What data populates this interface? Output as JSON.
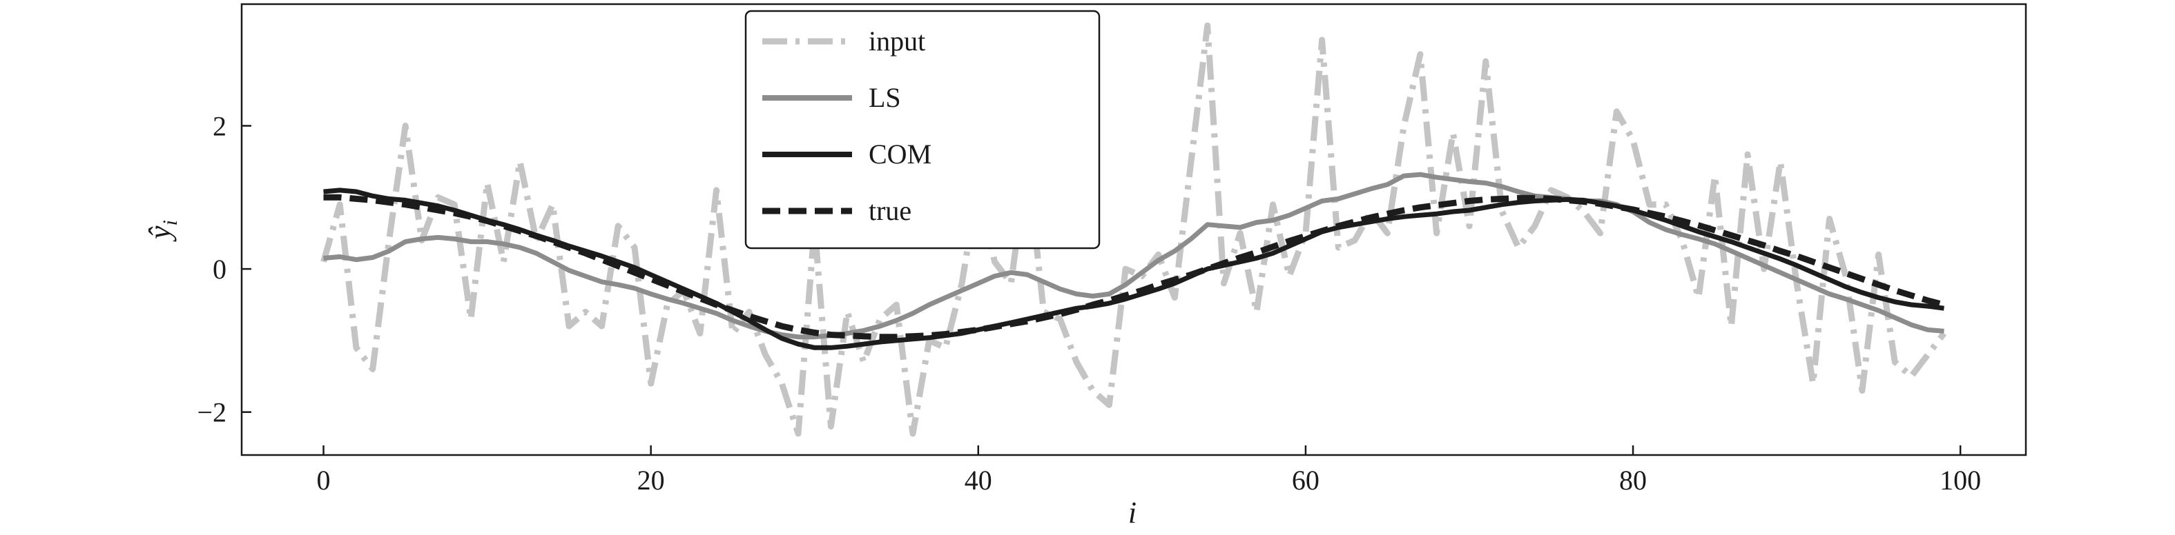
{
  "chart_data": {
    "type": "line",
    "xlabel": "i",
    "ylabel": "ŷ",
    "ylabel_sub": "i",
    "xlim": [
      -5,
      104
    ],
    "ylim": [
      -2.6,
      3.7
    ],
    "x_ticks": [
      0,
      20,
      40,
      60,
      80,
      100
    ],
    "x_tick_labels": [
      "0",
      "20",
      "40",
      "60",
      "80",
      "100"
    ],
    "y_ticks": [
      -2,
      0,
      2
    ],
    "y_tick_labels": [
      "−2",
      "0",
      "2"
    ],
    "grid": false,
    "legend_position": "top-center",
    "series": [
      {
        "name": "input",
        "color": "#c4c4c4",
        "style": "dashdot",
        "x": [
          0,
          1,
          2,
          3,
          4,
          5,
          6,
          7,
          8,
          9,
          10,
          11,
          12,
          13,
          14,
          15,
          16,
          17,
          18,
          19,
          20,
          21,
          22,
          23,
          24,
          25,
          26,
          27,
          28,
          29,
          30,
          31,
          32,
          33,
          34,
          35,
          36,
          37,
          38,
          39,
          40,
          41,
          42,
          43,
          44,
          45,
          46,
          47,
          48,
          49,
          50,
          51,
          52,
          53,
          54,
          55,
          56,
          57,
          58,
          59,
          60,
          61,
          62,
          63,
          64,
          65,
          66,
          67,
          68,
          69,
          70,
          71,
          72,
          73,
          74,
          75,
          76,
          77,
          78,
          79,
          80,
          81,
          82,
          83,
          84,
          85,
          86,
          87,
          88,
          89,
          90,
          91,
          92,
          93,
          94,
          95,
          96,
          97,
          98,
          99
        ],
        "y": [
          0.1,
          0.9,
          -1.1,
          -1.4,
          0.4,
          2.0,
          0.4,
          1.0,
          0.9,
          -0.7,
          1.2,
          0.1,
          1.5,
          0.4,
          0.9,
          -0.8,
          -0.6,
          -0.8,
          0.6,
          0.3,
          -1.6,
          -0.5,
          -0.3,
          -0.9,
          1.1,
          -0.9,
          -0.6,
          -1.2,
          -1.6,
          -2.3,
          0.6,
          -2.2,
          -0.6,
          -1.3,
          -0.7,
          -0.5,
          -2.3,
          -1.0,
          -1.1,
          -0.2,
          1.2,
          0.1,
          -0.2,
          1.5,
          -0.6,
          -0.7,
          -1.3,
          -1.7,
          -1.9,
          0.0,
          -0.1,
          0.2,
          -0.4,
          1.5,
          3.4,
          -0.2,
          0.5,
          -0.6,
          0.9,
          -0.1,
          0.5,
          3.2,
          0.3,
          0.4,
          0.8,
          0.5,
          2.0,
          3.0,
          0.5,
          1.9,
          0.6,
          2.9,
          0.8,
          0.3,
          0.6,
          1.1,
          1.0,
          0.8,
          0.5,
          2.2,
          1.8,
          0.9,
          0.9,
          0.4,
          -0.4,
          1.3,
          -0.8,
          1.6,
          0.0,
          1.5,
          -0.2,
          -1.6,
          0.7,
          -0.1,
          -1.7,
          0.2,
          -1.3,
          -1.5,
          -1.2,
          -0.9
        ]
      },
      {
        "name": "LS",
        "color": "#8c8c8c",
        "style": "solid",
        "x": [
          0,
          1,
          2,
          3,
          4,
          5,
          6,
          7,
          8,
          9,
          10,
          11,
          12,
          13,
          14,
          15,
          16,
          17,
          18,
          19,
          20,
          21,
          22,
          23,
          24,
          25,
          26,
          27,
          28,
          29,
          30,
          31,
          32,
          33,
          34,
          35,
          36,
          37,
          38,
          39,
          40,
          41,
          42,
          43,
          44,
          45,
          46,
          47,
          48,
          49,
          50,
          51,
          52,
          53,
          54,
          55,
          56,
          57,
          58,
          59,
          60,
          61,
          62,
          63,
          64,
          65,
          66,
          67,
          68,
          69,
          70,
          71,
          72,
          73,
          74,
          75,
          76,
          77,
          78,
          79,
          80,
          81,
          82,
          83,
          84,
          85,
          86,
          87,
          88,
          89,
          90,
          91,
          92,
          93,
          94,
          95,
          96,
          97,
          98,
          99
        ],
        "y": [
          0.15,
          0.17,
          0.13,
          0.16,
          0.25,
          0.38,
          0.42,
          0.44,
          0.42,
          0.38,
          0.38,
          0.35,
          0.3,
          0.22,
          0.1,
          -0.02,
          -0.1,
          -0.18,
          -0.22,
          -0.27,
          -0.35,
          -0.42,
          -0.48,
          -0.55,
          -0.62,
          -0.72,
          -0.8,
          -0.87,
          -0.92,
          -0.95,
          -0.95,
          -0.93,
          -0.9,
          -0.86,
          -0.8,
          -0.72,
          -0.62,
          -0.5,
          -0.4,
          -0.3,
          -0.2,
          -0.1,
          -0.05,
          -0.08,
          -0.18,
          -0.28,
          -0.35,
          -0.38,
          -0.35,
          -0.22,
          -0.05,
          0.12,
          0.25,
          0.42,
          0.62,
          0.6,
          0.58,
          0.65,
          0.68,
          0.75,
          0.85,
          0.95,
          0.98,
          1.05,
          1.12,
          1.18,
          1.3,
          1.32,
          1.28,
          1.25,
          1.22,
          1.2,
          1.15,
          1.08,
          1.02,
          1.0,
          0.98,
          0.95,
          0.95,
          0.9,
          0.8,
          0.65,
          0.55,
          0.48,
          0.42,
          0.35,
          0.25,
          0.15,
          0.05,
          -0.05,
          -0.15,
          -0.25,
          -0.35,
          -0.42,
          -0.5,
          -0.58,
          -0.68,
          -0.78,
          -0.85,
          -0.87
        ]
      },
      {
        "name": "COM",
        "color": "#1c1c1c",
        "style": "solid",
        "x": [
          0,
          1,
          2,
          3,
          4,
          5,
          6,
          7,
          8,
          9,
          10,
          11,
          12,
          13,
          14,
          15,
          16,
          17,
          18,
          19,
          20,
          21,
          22,
          23,
          24,
          25,
          26,
          27,
          28,
          29,
          30,
          31,
          32,
          33,
          34,
          35,
          36,
          37,
          38,
          39,
          40,
          41,
          42,
          43,
          44,
          45,
          46,
          47,
          48,
          49,
          50,
          51,
          52,
          53,
          54,
          55,
          56,
          57,
          58,
          59,
          60,
          61,
          62,
          63,
          64,
          65,
          66,
          67,
          68,
          69,
          70,
          71,
          72,
          73,
          74,
          75,
          76,
          77,
          78,
          79,
          80,
          81,
          82,
          83,
          84,
          85,
          86,
          87,
          88,
          89,
          90,
          91,
          92,
          93,
          94,
          95,
          96,
          97,
          98,
          99
        ],
        "y": [
          1.08,
          1.1,
          1.08,
          1.02,
          0.98,
          0.96,
          0.92,
          0.88,
          0.82,
          0.75,
          0.68,
          0.62,
          0.55,
          0.47,
          0.4,
          0.32,
          0.25,
          0.18,
          0.1,
          0.02,
          -0.08,
          -0.18,
          -0.28,
          -0.38,
          -0.48,
          -0.6,
          -0.72,
          -0.85,
          -0.97,
          -1.05,
          -1.1,
          -1.1,
          -1.08,
          -1.05,
          -1.02,
          -1.0,
          -0.98,
          -0.96,
          -0.93,
          -0.9,
          -0.85,
          -0.8,
          -0.75,
          -0.7,
          -0.65,
          -0.6,
          -0.55,
          -0.52,
          -0.48,
          -0.42,
          -0.35,
          -0.28,
          -0.2,
          -0.1,
          0.0,
          0.05,
          0.1,
          0.15,
          0.22,
          0.32,
          0.42,
          0.52,
          0.58,
          0.62,
          0.66,
          0.7,
          0.73,
          0.75,
          0.77,
          0.8,
          0.82,
          0.86,
          0.9,
          0.93,
          0.95,
          0.96,
          0.97,
          0.96,
          0.92,
          0.88,
          0.82,
          0.75,
          0.68,
          0.6,
          0.52,
          0.45,
          0.38,
          0.3,
          0.22,
          0.14,
          0.05,
          -0.05,
          -0.15,
          -0.25,
          -0.33,
          -0.4,
          -0.46,
          -0.5,
          -0.52,
          -0.55
        ]
      },
      {
        "name": "true",
        "color": "#1c1c1c",
        "style": "dashed",
        "x": [
          0,
          1,
          2,
          3,
          4,
          5,
          6,
          7,
          8,
          9,
          10,
          11,
          12,
          13,
          14,
          15,
          16,
          17,
          18,
          19,
          20,
          21,
          22,
          23,
          24,
          25,
          26,
          27,
          28,
          29,
          30,
          31,
          32,
          33,
          34,
          35,
          36,
          37,
          38,
          39,
          40,
          41,
          42,
          43,
          44,
          45,
          46,
          47,
          48,
          49,
          50,
          51,
          52,
          53,
          54,
          55,
          56,
          57,
          58,
          59,
          60,
          61,
          62,
          63,
          64,
          65,
          66,
          67,
          68,
          69,
          70,
          71,
          72,
          73,
          74,
          75,
          76,
          77,
          78,
          79,
          80,
          81,
          82,
          83,
          84,
          85,
          86,
          87,
          88,
          89,
          90,
          91,
          92,
          93,
          94,
          95,
          96,
          97,
          98,
          99
        ],
        "y": [
          1.0,
          1.0,
          0.98,
          0.96,
          0.93,
          0.9,
          0.86,
          0.82,
          0.78,
          0.73,
          0.67,
          0.6,
          0.53,
          0.46,
          0.38,
          0.3,
          0.22,
          0.13,
          0.04,
          -0.05,
          -0.14,
          -0.23,
          -0.32,
          -0.41,
          -0.5,
          -0.58,
          -0.66,
          -0.73,
          -0.8,
          -0.85,
          -0.89,
          -0.92,
          -0.93,
          -0.94,
          -0.95,
          -0.95,
          -0.94,
          -0.93,
          -0.91,
          -0.88,
          -0.85,
          -0.81,
          -0.77,
          -0.73,
          -0.68,
          -0.63,
          -0.57,
          -0.5,
          -0.44,
          -0.37,
          -0.3,
          -0.22,
          -0.15,
          -0.08,
          0.0,
          0.08,
          0.16,
          0.23,
          0.31,
          0.39,
          0.46,
          0.53,
          0.6,
          0.66,
          0.72,
          0.77,
          0.82,
          0.86,
          0.89,
          0.92,
          0.95,
          0.97,
          0.98,
          0.99,
          0.99,
          0.98,
          0.96,
          0.94,
          0.91,
          0.87,
          0.83,
          0.78,
          0.73,
          0.67,
          0.61,
          0.54,
          0.47,
          0.4,
          0.33,
          0.25,
          0.18,
          0.1,
          0.02,
          -0.06,
          -0.14,
          -0.22,
          -0.3,
          -0.37,
          -0.44,
          -0.5
        ]
      }
    ]
  }
}
